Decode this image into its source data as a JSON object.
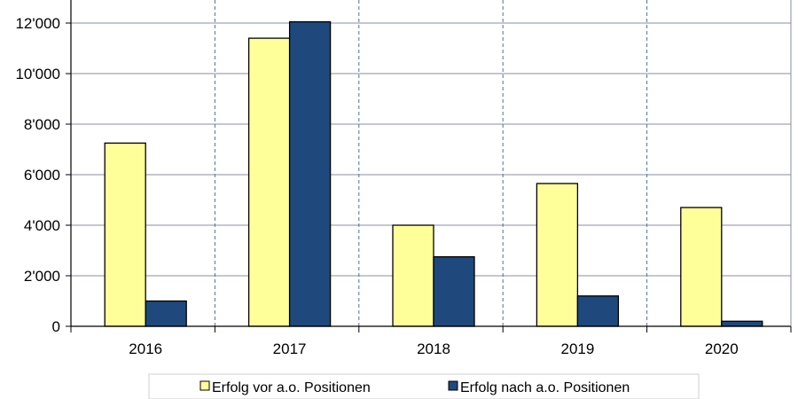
{
  "chart_data": {
    "type": "bar",
    "categories": [
      "2016",
      "2017",
      "2018",
      "2019",
      "2020"
    ],
    "series": [
      {
        "name": "Erfolg vor a.o. Positionen",
        "color": "#ffff99",
        "values": [
          7250,
          11400,
          4000,
          5650,
          4700
        ]
      },
      {
        "name": "Erfolg nach a.o. Positionen",
        "color": "#1f497d",
        "values": [
          1000,
          12050,
          2750,
          1200,
          200
        ]
      }
    ],
    "ylim": [
      0,
      13000
    ],
    "yticks": [
      0,
      2000,
      4000,
      6000,
      8000,
      10000,
      12000
    ],
    "ytick_labels": [
      "0",
      "2'000",
      "4'000",
      "6'000",
      "8'000",
      "10'000",
      "12'000"
    ],
    "grid": "horizontal",
    "legend": "bottom"
  }
}
